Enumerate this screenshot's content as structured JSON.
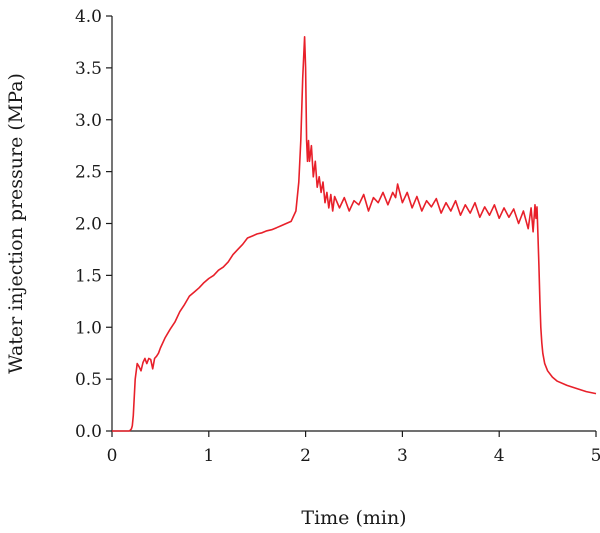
{
  "chart_data": {
    "type": "line",
    "title": "",
    "xlabel": "Time (min)",
    "ylabel": "Water injection pressure (MPa)",
    "xlim": [
      0,
      5
    ],
    "ylim": [
      0,
      4.0
    ],
    "xticks": [
      "0",
      "1",
      "2",
      "3",
      "4",
      "5"
    ],
    "yticks": [
      "0.0",
      "0.5",
      "1.0",
      "1.5",
      "2.0",
      "2.5",
      "3.0",
      "3.5",
      "4.0"
    ],
    "grid": false,
    "legend": "none",
    "series": [
      {
        "color": "#e8202a",
        "x": [
          0.0,
          0.18,
          0.2,
          0.21,
          0.22,
          0.24,
          0.26,
          0.28,
          0.3,
          0.32,
          0.34,
          0.36,
          0.38,
          0.4,
          0.42,
          0.44,
          0.46,
          0.48,
          0.5,
          0.55,
          0.6,
          0.65,
          0.7,
          0.75,
          0.8,
          0.85,
          0.9,
          0.95,
          1.0,
          1.05,
          1.1,
          1.15,
          1.2,
          1.25,
          1.3,
          1.35,
          1.4,
          1.45,
          1.5,
          1.55,
          1.6,
          1.65,
          1.7,
          1.75,
          1.8,
          1.85,
          1.9,
          1.93,
          1.95,
          1.97,
          1.99,
          2.0,
          2.01,
          2.02,
          2.03,
          2.04,
          2.06,
          2.08,
          2.1,
          2.12,
          2.14,
          2.16,
          2.18,
          2.2,
          2.22,
          2.24,
          2.26,
          2.28,
          2.3,
          2.35,
          2.4,
          2.45,
          2.5,
          2.55,
          2.6,
          2.65,
          2.7,
          2.75,
          2.8,
          2.85,
          2.9,
          2.93,
          2.95,
          3.0,
          3.05,
          3.1,
          3.15,
          3.2,
          3.25,
          3.3,
          3.35,
          3.4,
          3.45,
          3.5,
          3.55,
          3.6,
          3.65,
          3.7,
          3.75,
          3.8,
          3.85,
          3.9,
          3.95,
          4.0,
          4.05,
          4.1,
          4.15,
          4.2,
          4.25,
          4.3,
          4.33,
          4.35,
          4.37,
          4.38,
          4.39,
          4.4,
          4.41,
          4.42,
          4.43,
          4.44,
          4.45,
          4.47,
          4.5,
          4.55,
          4.6,
          4.7,
          4.8,
          4.9,
          5.0
        ],
        "y": [
          0.0,
          0.0,
          0.02,
          0.05,
          0.15,
          0.5,
          0.65,
          0.62,
          0.58,
          0.66,
          0.7,
          0.65,
          0.7,
          0.69,
          0.6,
          0.7,
          0.72,
          0.75,
          0.8,
          0.9,
          0.98,
          1.05,
          1.15,
          1.22,
          1.3,
          1.34,
          1.38,
          1.43,
          1.47,
          1.5,
          1.55,
          1.58,
          1.63,
          1.7,
          1.75,
          1.8,
          1.86,
          1.88,
          1.9,
          1.91,
          1.93,
          1.94,
          1.96,
          1.98,
          2.0,
          2.02,
          2.12,
          2.4,
          2.8,
          3.4,
          3.8,
          3.5,
          2.8,
          2.6,
          2.8,
          2.6,
          2.75,
          2.45,
          2.6,
          2.35,
          2.45,
          2.3,
          2.4,
          2.2,
          2.3,
          2.15,
          2.28,
          2.12,
          2.26,
          2.15,
          2.25,
          2.12,
          2.22,
          2.18,
          2.28,
          2.12,
          2.25,
          2.2,
          2.3,
          2.18,
          2.3,
          2.25,
          2.38,
          2.2,
          2.3,
          2.15,
          2.26,
          2.12,
          2.22,
          2.16,
          2.24,
          2.1,
          2.2,
          2.12,
          2.22,
          2.08,
          2.18,
          2.1,
          2.2,
          2.06,
          2.16,
          2.08,
          2.18,
          2.05,
          2.15,
          2.06,
          2.14,
          2.0,
          2.12,
          1.95,
          2.15,
          1.92,
          2.18,
          2.05,
          2.16,
          1.9,
          1.6,
          1.25,
          1.0,
          0.85,
          0.75,
          0.65,
          0.58,
          0.52,
          0.48,
          0.44,
          0.41,
          0.38,
          0.36
        ]
      }
    ]
  }
}
